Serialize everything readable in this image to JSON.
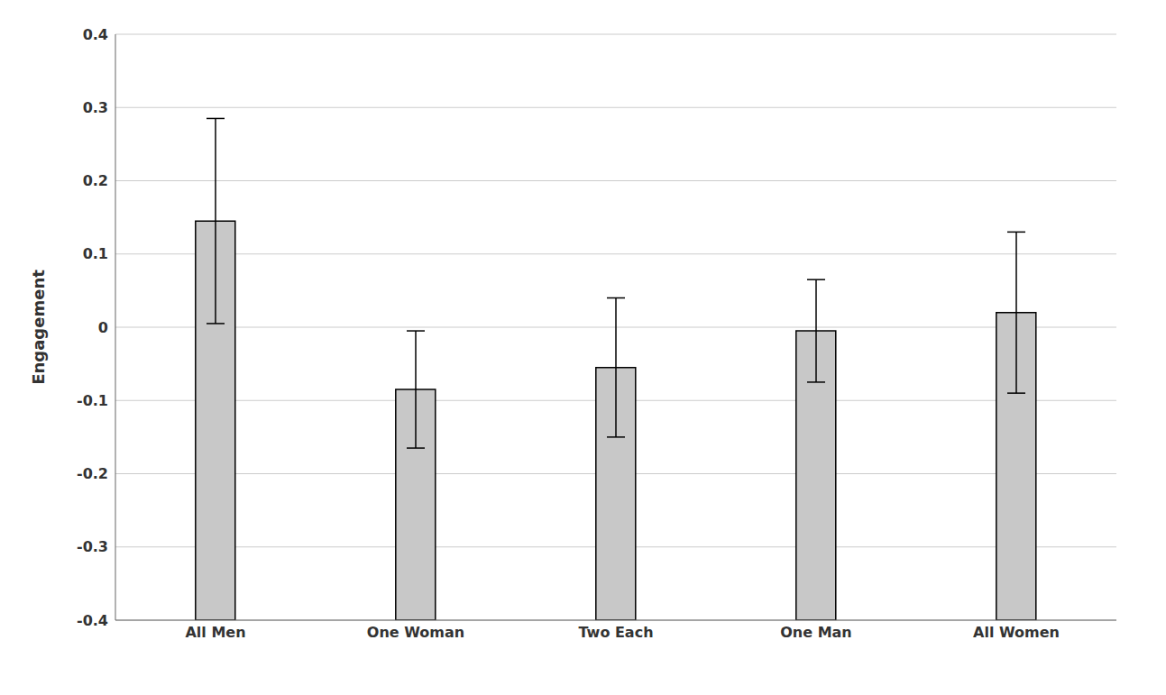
{
  "chart_data": {
    "type": "bar",
    "categories": [
      "All Men",
      "One Woman",
      "Two Each",
      "One Man",
      "All Women"
    ],
    "values": [
      0.145,
      -0.085,
      -0.055,
      -0.005,
      0.02
    ],
    "errors": [
      0.14,
      0.08,
      0.095,
      0.07,
      0.11
    ],
    "bar_bottom": -0.4,
    "color": "#C8C8C8",
    "ylabel": "Engagement",
    "ylim": [
      -0.4,
      0.4
    ],
    "yticks": [
      -0.4,
      -0.3,
      -0.2,
      -0.1,
      0.0,
      0.1,
      0.2,
      0.3,
      0.4
    ],
    "grid": true
  }
}
